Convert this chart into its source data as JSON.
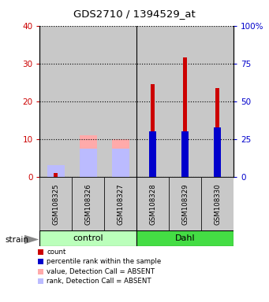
{
  "title": "GDS2710 / 1394529_at",
  "samples": [
    "GSM108325",
    "GSM108326",
    "GSM108327",
    "GSM108328",
    "GSM108329",
    "GSM108330"
  ],
  "count_values": [
    1.0,
    0,
    0,
    24.5,
    31.5,
    23.5
  ],
  "rank_values": [
    0,
    0,
    0,
    30,
    30,
    32.5
  ],
  "absent_value_values": [
    0,
    11,
    10,
    0,
    0,
    0
  ],
  "absent_rank_values": [
    3,
    7.5,
    7.5,
    0,
    0,
    0
  ],
  "ylim_left": [
    0,
    40
  ],
  "ylim_right": [
    0,
    100
  ],
  "yticks_left": [
    0,
    10,
    20,
    30,
    40
  ],
  "yticks_right": [
    0,
    25,
    50,
    75,
    100
  ],
  "ytick_labels_left": [
    "0",
    "10",
    "20",
    "30",
    "40"
  ],
  "ytick_labels_right": [
    "0",
    "25",
    "50",
    "75",
    "100%"
  ],
  "color_count": "#cc0000",
  "color_rank": "#0000cc",
  "color_absent_value": "#ffaaaa",
  "color_absent_rank": "#bbbbff",
  "bg_sample": "#c8c8c8",
  "group_light_color": "#bbffbb",
  "group_dark_color": "#44dd44",
  "legend_items": [
    {
      "color": "#cc0000",
      "label": "count"
    },
    {
      "color": "#0000cc",
      "label": "percentile rank within the sample"
    },
    {
      "color": "#ffaaaa",
      "label": "value, Detection Call = ABSENT"
    },
    {
      "color": "#bbbbff",
      "label": "rank, Detection Call = ABSENT"
    }
  ],
  "narrow_bar_width": 0.12,
  "wide_bar_width": 0.55
}
